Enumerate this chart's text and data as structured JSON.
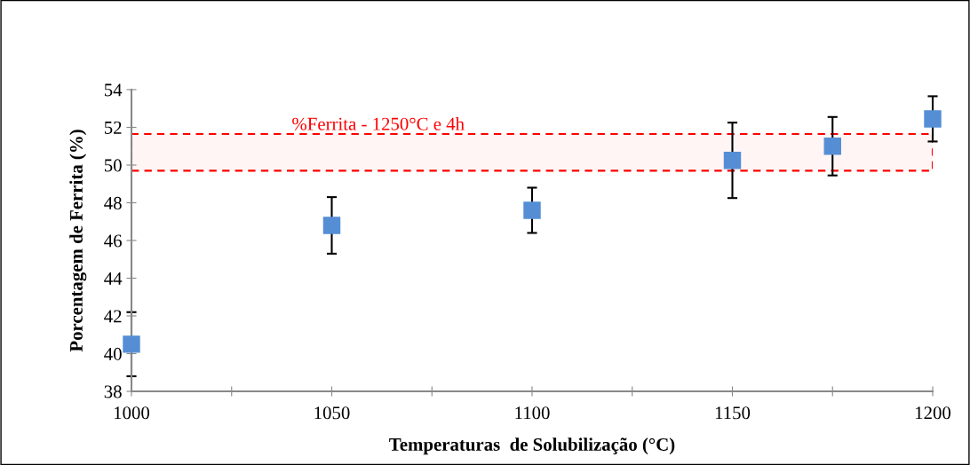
{
  "chart_data": {
    "type": "scatter",
    "xlabel": "Temperaturas  de Solubilização (°C)",
    "ylabel": "Porcentagem de Ferrita (%)",
    "x": [
      1000,
      1050,
      1100,
      1150,
      1175,
      1200
    ],
    "series": [
      {
        "color": "#558ed5",
        "values": [
          40.5,
          46.8,
          47.6,
          50.25,
          51.0,
          52.45
        ],
        "errors": [
          1.7,
          1.5,
          1.2,
          2.0,
          1.55,
          1.2
        ]
      }
    ],
    "marker": "square",
    "xlim": [
      1000,
      1200
    ],
    "xticks": [
      1000,
      {
        "value": 1025,
        "label": null
      },
      1050,
      {
        "value": 1075,
        "label": null
      },
      1100,
      {
        "value": 1125,
        "label": null
      },
      1150,
      {
        "value": 1175,
        "label": null
      },
      1200
    ],
    "ylim": [
      38,
      54
    ],
    "yticks": [
      38,
      40,
      42,
      44,
      46,
      48,
      50,
      52,
      54
    ],
    "bands": [
      {
        "axis": "y",
        "from": 49.7,
        "to": 51.65,
        "label": "%Ferrita - 1250°C e 4h",
        "color": "#ff0000"
      }
    ],
    "grid": false,
    "legend": false
  }
}
